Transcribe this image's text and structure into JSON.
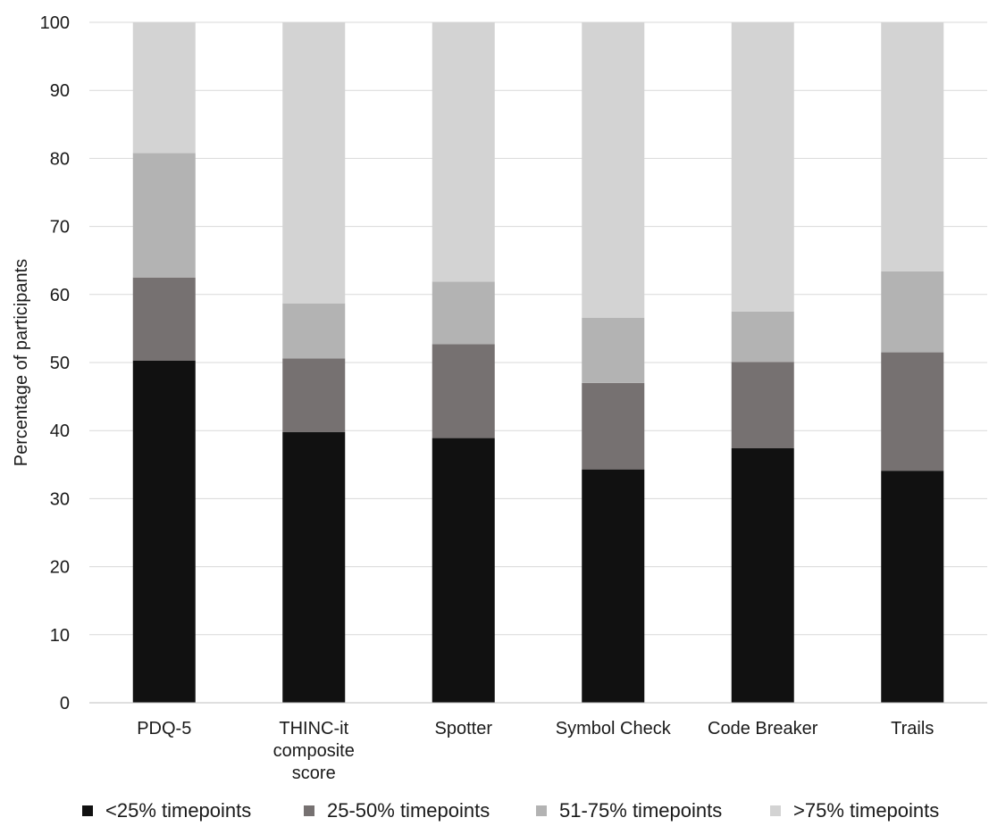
{
  "chart_data": {
    "type": "bar",
    "stacked": true,
    "title": "",
    "xlabel": "",
    "ylabel": "Percentage of participants",
    "ylim": [
      0,
      100
    ],
    "yticks": [
      0,
      10,
      20,
      30,
      40,
      50,
      60,
      70,
      80,
      90,
      100
    ],
    "grid": true,
    "legend_position": "bottom",
    "categories": [
      [
        "PDQ-5"
      ],
      [
        "THINC-it",
        "composite",
        "score"
      ],
      [
        "Spotter"
      ],
      [
        "Symbol Check"
      ],
      [
        "Code Breaker"
      ],
      [
        "Trails"
      ]
    ],
    "series": [
      {
        "name": "<25% timepoints",
        "color": "#111111",
        "values": [
          50.3,
          39.8,
          38.9,
          34.3,
          37.4,
          34.1
        ]
      },
      {
        "name": "25-50% timepoints",
        "color": "#767171",
        "values": [
          12.2,
          10.8,
          13.8,
          12.7,
          12.7,
          17.4
        ]
      },
      {
        "name": "51-75% timepoints",
        "color": "#b3b3b3",
        "values": [
          18.3,
          8.1,
          9.2,
          9.6,
          7.4,
          11.9
        ]
      },
      {
        "name": ">75% timepoints",
        "color": "#d3d3d3",
        "values": [
          19.2,
          41.3,
          38.1,
          43.4,
          42.5,
          36.6
        ]
      }
    ]
  }
}
